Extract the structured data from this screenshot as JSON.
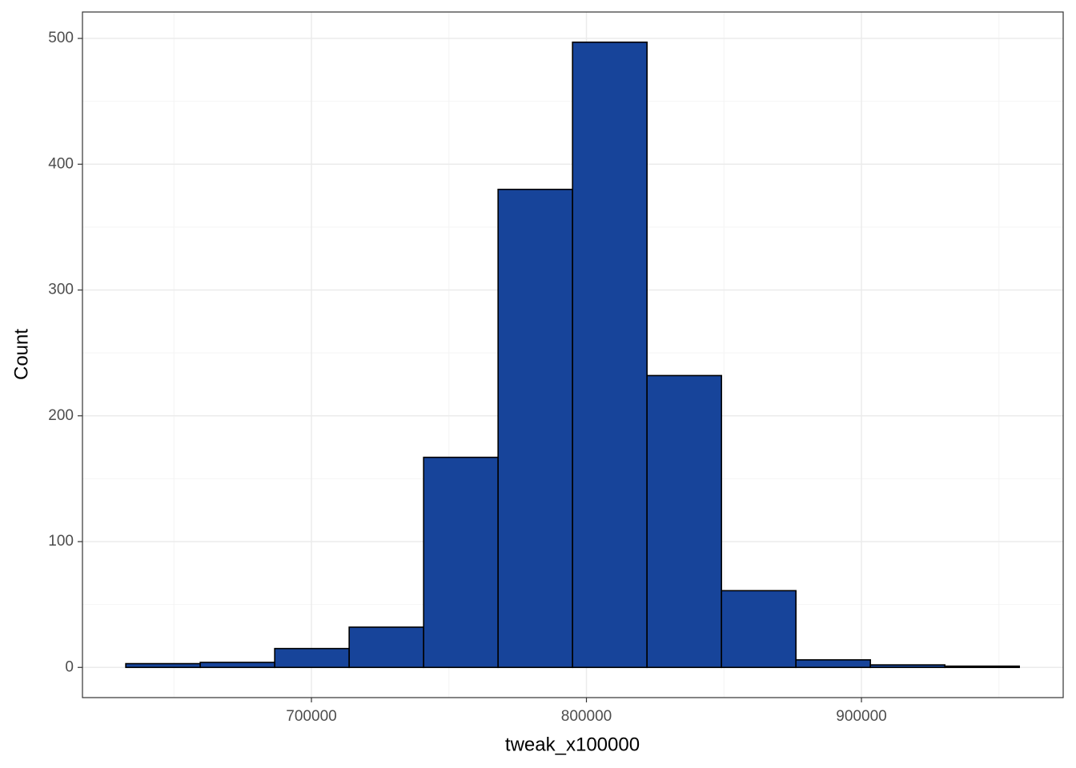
{
  "chart_data": {
    "type": "histogram",
    "xlabel": "tweak_x100000",
    "ylabel": "Count",
    "bins": [
      632500,
      659575,
      686650,
      713725,
      740800,
      767875,
      794950,
      822025,
      849100,
      876175,
      903250,
      930325,
      957400
    ],
    "counts": [
      3,
      4,
      15,
      32,
      167,
      380,
      497,
      232,
      61,
      6,
      2,
      1
    ],
    "color": "#17449a",
    "edgecolor": "#000000",
    "xlim": [
      616740,
      973360
    ],
    "xticks": [
      700000,
      800000,
      900000
    ],
    "xminor": [
      650000,
      750000,
      850000,
      950000
    ],
    "ylim": [
      -24,
      521
    ],
    "yticks": [
      0,
      100,
      200,
      300,
      400,
      500
    ],
    "yminor": [
      50,
      150,
      250,
      350,
      450
    ],
    "grid": true
  }
}
